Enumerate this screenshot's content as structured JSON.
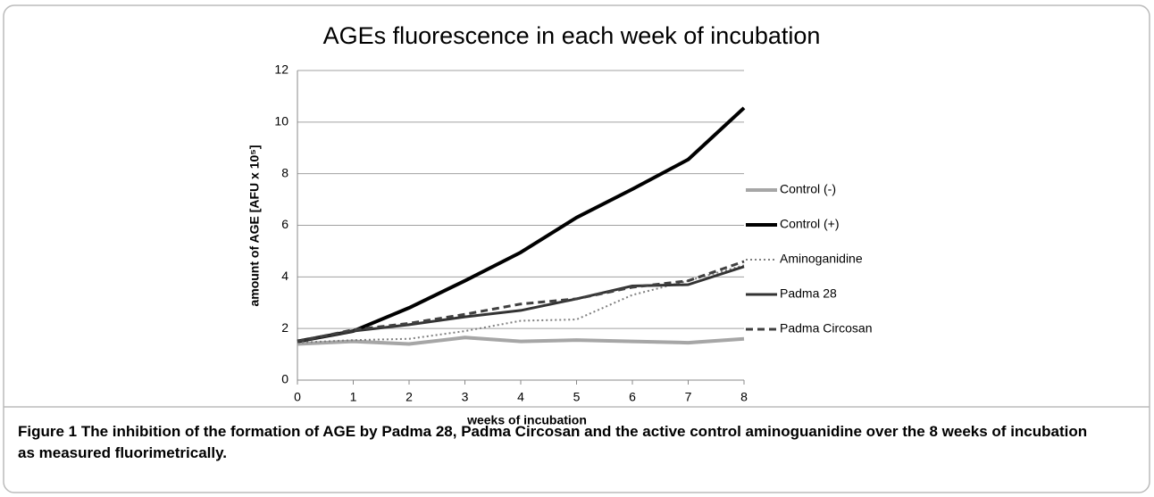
{
  "chart_data": {
    "type": "line",
    "title": "AGEs fluorescence in each week of incubation",
    "xlabel": "weeks of incubation",
    "ylabel": "amount of AGE [AFU x 10⁵]",
    "x": [
      0,
      1,
      2,
      3,
      4,
      5,
      6,
      7,
      8
    ],
    "xlim": [
      0,
      8
    ],
    "xticks": [
      0,
      1,
      2,
      3,
      4,
      5,
      6,
      7,
      8
    ],
    "ylim": [
      0,
      12
    ],
    "yticks": [
      0,
      2,
      4,
      6,
      8,
      10,
      12
    ],
    "grid": true,
    "legend": "right",
    "series": [
      {
        "name": "Control (-)",
        "color": "#a6a6a6",
        "linestyle": "solid",
        "values": [
          1.4,
          1.5,
          1.4,
          1.65,
          1.5,
          1.55,
          1.5,
          1.45,
          1.6
        ]
      },
      {
        "name": "Control (+)",
        "color": "#000000",
        "linestyle": "solid",
        "values": [
          1.5,
          1.9,
          2.8,
          3.85,
          4.95,
          6.3,
          7.4,
          8.55,
          10.55
        ]
      },
      {
        "name": "Aminoganidine",
        "color": "#7f7f7f",
        "linestyle": "dotted",
        "values": [
          1.45,
          1.55,
          1.6,
          1.9,
          2.3,
          2.35,
          3.3,
          3.85,
          4.45
        ]
      },
      {
        "name": "Padma 28",
        "color": "#333333",
        "linestyle": "solid",
        "values": [
          1.5,
          1.9,
          2.15,
          2.45,
          2.7,
          3.15,
          3.65,
          3.7,
          4.4
        ]
      },
      {
        "name": "Padma Circosan",
        "color": "#404040",
        "linestyle": "dashed",
        "values": [
          1.5,
          1.95,
          2.2,
          2.55,
          2.95,
          3.15,
          3.6,
          3.85,
          4.6
        ]
      }
    ]
  },
  "caption": {
    "label": "Figure 1",
    "text": "The inhibition of the formation of AGE by Padma 28, Padma Circosan and the active control aminoguanidine over the 8 weeks of incubation as measured fluorimetrically."
  }
}
